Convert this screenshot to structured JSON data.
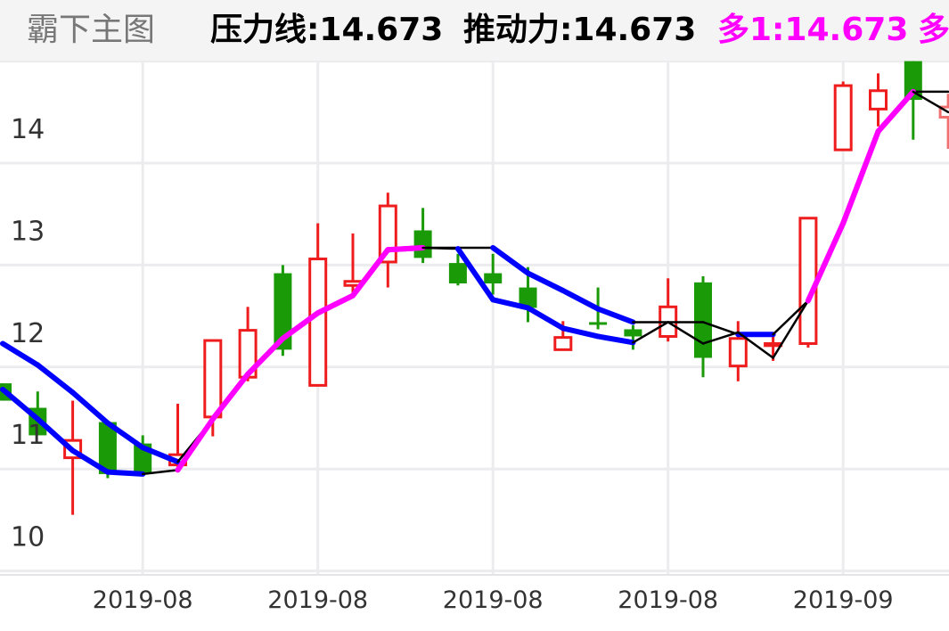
{
  "header": {
    "title": "霸下主图",
    "indicators": [
      {
        "label": "压力线:14.673",
        "color": "#000000"
      },
      {
        "label": "推动力:14.673",
        "color": "#000000"
      },
      {
        "label": "多1:14.673",
        "color": "#ff00ff"
      },
      {
        "label": "多",
        "color": "#ff00ff"
      }
    ]
  },
  "chart_data": {
    "type": "candlestick",
    "ylim": [
      10,
      15
    ],
    "y_ticks": [
      "10",
      "11",
      "12",
      "13",
      "14"
    ],
    "x_tick_labels": [
      {
        "index": 4,
        "label": "2019-08"
      },
      {
        "index": 9,
        "label": "2019-08"
      },
      {
        "index": 14,
        "label": "2019-08"
      },
      {
        "index": 19,
        "label": "2019-08"
      },
      {
        "index": 24,
        "label": "2019-09"
      }
    ],
    "grid": true,
    "colors": {
      "up": "#ee1c1c",
      "down": "#1a9a06",
      "rising_line": "#ff00ff",
      "falling_line": "#0000ff",
      "neutral_line": "#000000",
      "last_candle": "#f07070"
    },
    "candles": [
      {
        "o": 11.84,
        "h": 11.84,
        "l": 11.67,
        "c": 11.67
      },
      {
        "o": 11.6,
        "h": 11.76,
        "l": 11.33,
        "c": 11.33
      },
      {
        "o": 11.11,
        "h": 11.67,
        "l": 10.55,
        "c": 11.28
      },
      {
        "o": 11.46,
        "h": 11.46,
        "l": 10.91,
        "c": 10.95
      },
      {
        "o": 11.25,
        "h": 11.33,
        "l": 10.95,
        "c": 10.95
      },
      {
        "o": 11.04,
        "h": 11.64,
        "l": 10.98,
        "c": 11.14
      },
      {
        "o": 11.51,
        "h": 12.26,
        "l": 11.32,
        "c": 12.26
      },
      {
        "o": 11.9,
        "h": 12.59,
        "l": 11.86,
        "c": 12.36
      },
      {
        "o": 12.92,
        "h": 13.0,
        "l": 12.11,
        "c": 12.17
      },
      {
        "o": 11.82,
        "h": 13.41,
        "l": 11.82,
        "c": 13.06
      },
      {
        "o": 12.8,
        "h": 13.31,
        "l": 12.72,
        "c": 12.84
      },
      {
        "o": 13.03,
        "h": 13.71,
        "l": 12.78,
        "c": 13.58
      },
      {
        "o": 13.34,
        "h": 13.56,
        "l": 13.02,
        "c": 13.07
      },
      {
        "o": 13.02,
        "h": 13.11,
        "l": 12.8,
        "c": 12.82
      },
      {
        "o": 12.92,
        "h": 13.11,
        "l": 12.71,
        "c": 12.82
      },
      {
        "o": 12.78,
        "h": 12.98,
        "l": 12.44,
        "c": 12.58
      },
      {
        "o": 12.17,
        "h": 12.45,
        "l": 12.16,
        "c": 12.29
      },
      {
        "o": 12.44,
        "h": 12.78,
        "l": 12.37,
        "c": 12.42
      },
      {
        "o": 12.37,
        "h": 12.41,
        "l": 12.17,
        "c": 12.3
      },
      {
        "o": 12.3,
        "h": 12.87,
        "l": 12.25,
        "c": 12.59
      },
      {
        "o": 12.83,
        "h": 12.89,
        "l": 11.9,
        "c": 12.09
      },
      {
        "o": 12.01,
        "h": 12.45,
        "l": 11.86,
        "c": 12.28
      },
      {
        "o": 12.21,
        "h": 12.31,
        "l": 12.06,
        "c": 12.23
      },
      {
        "o": 12.23,
        "h": 13.46,
        "l": 12.19,
        "c": 13.46
      },
      {
        "o": 14.13,
        "h": 14.8,
        "l": 14.13,
        "c": 14.76
      },
      {
        "o": 14.53,
        "h": 14.88,
        "l": 14.36,
        "c": 14.71
      },
      {
        "o": 15.0,
        "h": 15.0,
        "l": 14.23,
        "c": 14.62
      },
      {
        "o": 14.45,
        "h": 14.68,
        "l": 14.14,
        "c": 14.55
      }
    ],
    "series": [
      {
        "values": [
          12.23,
          12.02,
          11.75,
          11.45,
          11.21,
          11.07,
          11.49,
          11.93,
          12.28,
          12.53,
          12.7,
          13.15,
          13.17,
          13.17,
          13.17,
          12.92,
          12.75,
          12.57,
          12.44,
          12.44,
          12.44,
          12.32,
          12.32,
          12.65,
          13.41,
          14.31,
          14.7,
          14.7
        ],
        "segment_colors": [
          "falling",
          "falling",
          "falling",
          "falling",
          "falling",
          "neutral",
          "rising",
          "rising",
          "rising",
          "rising",
          "rising",
          "rising",
          "neutral",
          "neutral",
          "falling",
          "falling",
          "falling",
          "falling",
          "neutral",
          "neutral",
          "neutral",
          "falling",
          "neutral",
          "rising",
          "rising",
          "rising",
          "neutral"
        ]
      },
      {
        "values": [
          11.78,
          11.49,
          11.18,
          10.97,
          10.95,
          10.99,
          11.49,
          11.93,
          12.28,
          12.53,
          12.7,
          13.15,
          13.17,
          13.16,
          12.66,
          12.58,
          12.38,
          12.3,
          12.24,
          12.44,
          12.23,
          12.34,
          12.09,
          12.65,
          13.41,
          14.31,
          14.7,
          14.5
        ],
        "segment_colors": [
          "falling",
          "falling",
          "falling",
          "falling",
          "neutral",
          "rising",
          "rising",
          "rising",
          "rising",
          "rising",
          "rising",
          "rising",
          "neutral",
          "falling",
          "falling",
          "falling",
          "falling",
          "falling",
          "neutral",
          "neutral",
          "neutral",
          "neutral",
          "neutral",
          "rising",
          "rising",
          "rising",
          "neutral"
        ]
      }
    ]
  }
}
